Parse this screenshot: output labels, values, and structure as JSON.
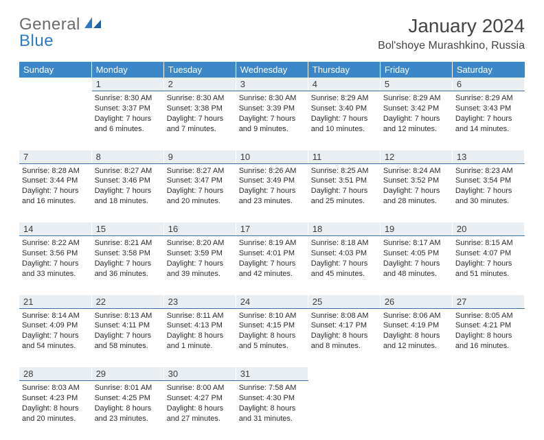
{
  "logo": {
    "general": "General",
    "blue": "Blue"
  },
  "title": "January 2024",
  "subtitle": "Bol'shoye Murashkino, Russia",
  "colors": {
    "header_bg": "#3b87c8",
    "header_fg": "#ffffff",
    "daynum_bg": "#e9eef3",
    "daynum_border": "#3b6fa3",
    "logo_gray": "#6b6b6b",
    "logo_blue": "#2f78c4"
  },
  "day_headers": [
    "Sunday",
    "Monday",
    "Tuesday",
    "Wednesday",
    "Thursday",
    "Friday",
    "Saturday"
  ],
  "weeks": [
    {
      "nums": [
        "",
        "1",
        "2",
        "3",
        "4",
        "5",
        "6"
      ],
      "cells": [
        [],
        [
          "Sunrise: 8:30 AM",
          "Sunset: 3:37 PM",
          "Daylight: 7 hours",
          "and 6 minutes."
        ],
        [
          "Sunrise: 8:30 AM",
          "Sunset: 3:38 PM",
          "Daylight: 7 hours",
          "and 7 minutes."
        ],
        [
          "Sunrise: 8:30 AM",
          "Sunset: 3:39 PM",
          "Daylight: 7 hours",
          "and 9 minutes."
        ],
        [
          "Sunrise: 8:29 AM",
          "Sunset: 3:40 PM",
          "Daylight: 7 hours",
          "and 10 minutes."
        ],
        [
          "Sunrise: 8:29 AM",
          "Sunset: 3:42 PM",
          "Daylight: 7 hours",
          "and 12 minutes."
        ],
        [
          "Sunrise: 8:29 AM",
          "Sunset: 3:43 PM",
          "Daylight: 7 hours",
          "and 14 minutes."
        ]
      ]
    },
    {
      "nums": [
        "7",
        "8",
        "9",
        "10",
        "11",
        "12",
        "13"
      ],
      "cells": [
        [
          "Sunrise: 8:28 AM",
          "Sunset: 3:44 PM",
          "Daylight: 7 hours",
          "and 16 minutes."
        ],
        [
          "Sunrise: 8:27 AM",
          "Sunset: 3:46 PM",
          "Daylight: 7 hours",
          "and 18 minutes."
        ],
        [
          "Sunrise: 8:27 AM",
          "Sunset: 3:47 PM",
          "Daylight: 7 hours",
          "and 20 minutes."
        ],
        [
          "Sunrise: 8:26 AM",
          "Sunset: 3:49 PM",
          "Daylight: 7 hours",
          "and 23 minutes."
        ],
        [
          "Sunrise: 8:25 AM",
          "Sunset: 3:51 PM",
          "Daylight: 7 hours",
          "and 25 minutes."
        ],
        [
          "Sunrise: 8:24 AM",
          "Sunset: 3:52 PM",
          "Daylight: 7 hours",
          "and 28 minutes."
        ],
        [
          "Sunrise: 8:23 AM",
          "Sunset: 3:54 PM",
          "Daylight: 7 hours",
          "and 30 minutes."
        ]
      ]
    },
    {
      "nums": [
        "14",
        "15",
        "16",
        "17",
        "18",
        "19",
        "20"
      ],
      "cells": [
        [
          "Sunrise: 8:22 AM",
          "Sunset: 3:56 PM",
          "Daylight: 7 hours",
          "and 33 minutes."
        ],
        [
          "Sunrise: 8:21 AM",
          "Sunset: 3:58 PM",
          "Daylight: 7 hours",
          "and 36 minutes."
        ],
        [
          "Sunrise: 8:20 AM",
          "Sunset: 3:59 PM",
          "Daylight: 7 hours",
          "and 39 minutes."
        ],
        [
          "Sunrise: 8:19 AM",
          "Sunset: 4:01 PM",
          "Daylight: 7 hours",
          "and 42 minutes."
        ],
        [
          "Sunrise: 8:18 AM",
          "Sunset: 4:03 PM",
          "Daylight: 7 hours",
          "and 45 minutes."
        ],
        [
          "Sunrise: 8:17 AM",
          "Sunset: 4:05 PM",
          "Daylight: 7 hours",
          "and 48 minutes."
        ],
        [
          "Sunrise: 8:15 AM",
          "Sunset: 4:07 PM",
          "Daylight: 7 hours",
          "and 51 minutes."
        ]
      ]
    },
    {
      "nums": [
        "21",
        "22",
        "23",
        "24",
        "25",
        "26",
        "27"
      ],
      "cells": [
        [
          "Sunrise: 8:14 AM",
          "Sunset: 4:09 PM",
          "Daylight: 7 hours",
          "and 54 minutes."
        ],
        [
          "Sunrise: 8:13 AM",
          "Sunset: 4:11 PM",
          "Daylight: 7 hours",
          "and 58 minutes."
        ],
        [
          "Sunrise: 8:11 AM",
          "Sunset: 4:13 PM",
          "Daylight: 8 hours",
          "and 1 minute."
        ],
        [
          "Sunrise: 8:10 AM",
          "Sunset: 4:15 PM",
          "Daylight: 8 hours",
          "and 5 minutes."
        ],
        [
          "Sunrise: 8:08 AM",
          "Sunset: 4:17 PM",
          "Daylight: 8 hours",
          "and 8 minutes."
        ],
        [
          "Sunrise: 8:06 AM",
          "Sunset: 4:19 PM",
          "Daylight: 8 hours",
          "and 12 minutes."
        ],
        [
          "Sunrise: 8:05 AM",
          "Sunset: 4:21 PM",
          "Daylight: 8 hours",
          "and 16 minutes."
        ]
      ]
    },
    {
      "nums": [
        "28",
        "29",
        "30",
        "31",
        "",
        "",
        ""
      ],
      "cells": [
        [
          "Sunrise: 8:03 AM",
          "Sunset: 4:23 PM",
          "Daylight: 8 hours",
          "and 20 minutes."
        ],
        [
          "Sunrise: 8:01 AM",
          "Sunset: 4:25 PM",
          "Daylight: 8 hours",
          "and 23 minutes."
        ],
        [
          "Sunrise: 8:00 AM",
          "Sunset: 4:27 PM",
          "Daylight: 8 hours",
          "and 27 minutes."
        ],
        [
          "Sunrise: 7:58 AM",
          "Sunset: 4:30 PM",
          "Daylight: 8 hours",
          "and 31 minutes."
        ],
        [],
        [],
        []
      ]
    }
  ]
}
